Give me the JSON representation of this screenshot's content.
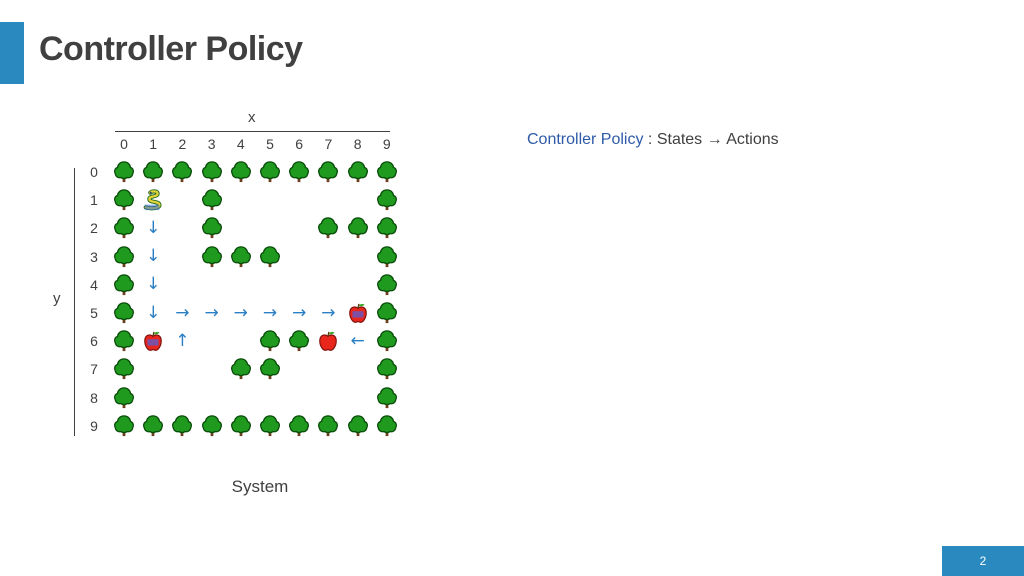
{
  "slide": {
    "title": "Controller Policy",
    "page_number": "2",
    "accent_color": "#2a8ac0"
  },
  "axes": {
    "x_label": "x",
    "y_label": "y",
    "x_ticks": [
      "0",
      "1",
      "2",
      "3",
      "4",
      "5",
      "6",
      "7",
      "8",
      "9"
    ],
    "y_ticks": [
      "0",
      "1",
      "2",
      "3",
      "4",
      "5",
      "6",
      "7",
      "8",
      "9"
    ]
  },
  "system_label": "System",
  "caption": {
    "highlight": "Controller Policy",
    "rest": " : States → Actions",
    "highlight_color": "#2e5aa8"
  },
  "grid": {
    "rows": 10,
    "cols": 10,
    "cells": [
      {
        "x": 0,
        "y": 0,
        "type": "tree"
      },
      {
        "x": 1,
        "y": 0,
        "type": "tree"
      },
      {
        "x": 2,
        "y": 0,
        "type": "tree"
      },
      {
        "x": 3,
        "y": 0,
        "type": "tree"
      },
      {
        "x": 4,
        "y": 0,
        "type": "tree"
      },
      {
        "x": 5,
        "y": 0,
        "type": "tree"
      },
      {
        "x": 6,
        "y": 0,
        "type": "tree"
      },
      {
        "x": 7,
        "y": 0,
        "type": "tree"
      },
      {
        "x": 8,
        "y": 0,
        "type": "tree"
      },
      {
        "x": 9,
        "y": 0,
        "type": "tree"
      },
      {
        "x": 0,
        "y": 1,
        "type": "tree"
      },
      {
        "x": 1,
        "y": 1,
        "type": "snake"
      },
      {
        "x": 3,
        "y": 1,
        "type": "tree"
      },
      {
        "x": 9,
        "y": 1,
        "type": "tree"
      },
      {
        "x": 0,
        "y": 2,
        "type": "tree"
      },
      {
        "x": 1,
        "y": 2,
        "type": "arrow",
        "dir": "↓"
      },
      {
        "x": 3,
        "y": 2,
        "type": "tree"
      },
      {
        "x": 7,
        "y": 2,
        "type": "tree"
      },
      {
        "x": 8,
        "y": 2,
        "type": "tree"
      },
      {
        "x": 9,
        "y": 2,
        "type": "tree"
      },
      {
        "x": 0,
        "y": 3,
        "type": "tree"
      },
      {
        "x": 1,
        "y": 3,
        "type": "arrow",
        "dir": "↓"
      },
      {
        "x": 3,
        "y": 3,
        "type": "tree"
      },
      {
        "x": 4,
        "y": 3,
        "type": "tree"
      },
      {
        "x": 5,
        "y": 3,
        "type": "tree"
      },
      {
        "x": 9,
        "y": 3,
        "type": "tree"
      },
      {
        "x": 0,
        "y": 4,
        "type": "tree"
      },
      {
        "x": 1,
        "y": 4,
        "type": "arrow",
        "dir": "↓"
      },
      {
        "x": 9,
        "y": 4,
        "type": "tree"
      },
      {
        "x": 0,
        "y": 5,
        "type": "tree"
      },
      {
        "x": 1,
        "y": 5,
        "type": "arrow",
        "dir": "↓"
      },
      {
        "x": 2,
        "y": 5,
        "type": "arrow",
        "dir": "→"
      },
      {
        "x": 3,
        "y": 5,
        "type": "arrow",
        "dir": "→"
      },
      {
        "x": 4,
        "y": 5,
        "type": "arrow",
        "dir": "→"
      },
      {
        "x": 5,
        "y": 5,
        "type": "arrow",
        "dir": "→"
      },
      {
        "x": 6,
        "y": 5,
        "type": "arrow",
        "dir": "→"
      },
      {
        "x": 7,
        "y": 5,
        "type": "arrow",
        "dir": "→"
      },
      {
        "x": 8,
        "y": 5,
        "type": "apple-marked"
      },
      {
        "x": 9,
        "y": 5,
        "type": "tree"
      },
      {
        "x": 0,
        "y": 6,
        "type": "tree"
      },
      {
        "x": 1,
        "y": 6,
        "type": "apple-marked"
      },
      {
        "x": 2,
        "y": 6,
        "type": "arrow",
        "dir": "↑"
      },
      {
        "x": 5,
        "y": 6,
        "type": "tree"
      },
      {
        "x": 6,
        "y": 6,
        "type": "tree"
      },
      {
        "x": 7,
        "y": 6,
        "type": "apple"
      },
      {
        "x": 8,
        "y": 6,
        "type": "arrow",
        "dir": "←"
      },
      {
        "x": 9,
        "y": 6,
        "type": "tree"
      },
      {
        "x": 0,
        "y": 7,
        "type": "tree"
      },
      {
        "x": 4,
        "y": 7,
        "type": "tree"
      },
      {
        "x": 5,
        "y": 7,
        "type": "tree"
      },
      {
        "x": 9,
        "y": 7,
        "type": "tree"
      },
      {
        "x": 0,
        "y": 8,
        "type": "tree"
      },
      {
        "x": 9,
        "y": 8,
        "type": "tree"
      },
      {
        "x": 0,
        "y": 9,
        "type": "tree"
      },
      {
        "x": 1,
        "y": 9,
        "type": "tree"
      },
      {
        "x": 2,
        "y": 9,
        "type": "tree"
      },
      {
        "x": 3,
        "y": 9,
        "type": "tree"
      },
      {
        "x": 4,
        "y": 9,
        "type": "tree"
      },
      {
        "x": 5,
        "y": 9,
        "type": "tree"
      },
      {
        "x": 6,
        "y": 9,
        "type": "tree"
      },
      {
        "x": 7,
        "y": 9,
        "type": "tree"
      },
      {
        "x": 8,
        "y": 9,
        "type": "tree"
      },
      {
        "x": 9,
        "y": 9,
        "type": "tree"
      }
    ]
  }
}
